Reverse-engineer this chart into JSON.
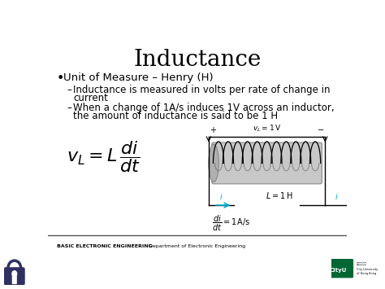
{
  "title": "Inductance",
  "title_fontsize": 20,
  "bg_color": "#ffffff",
  "bullet_text": "Unit of Measure – Henry (H)",
  "sub1a": "Inductance is measured in volts per rate of change in",
  "sub1b": "current",
  "sub2a": "When a change of 1A/s induces 1V across an inductor,",
  "sub2b": "the amount of inductance is said to be 1 H",
  "footer_left": "BASIC ELECTRONIC ENGINEERING",
  "footer_center": "Department of Electronic Engineering",
  "text_color": "#000000",
  "cyan_color": "#00aacc",
  "bullet_fontsize": 9.5,
  "sub_fontsize": 8.5,
  "formula_fontsize": 16,
  "circuit_label_fontsize": 7
}
